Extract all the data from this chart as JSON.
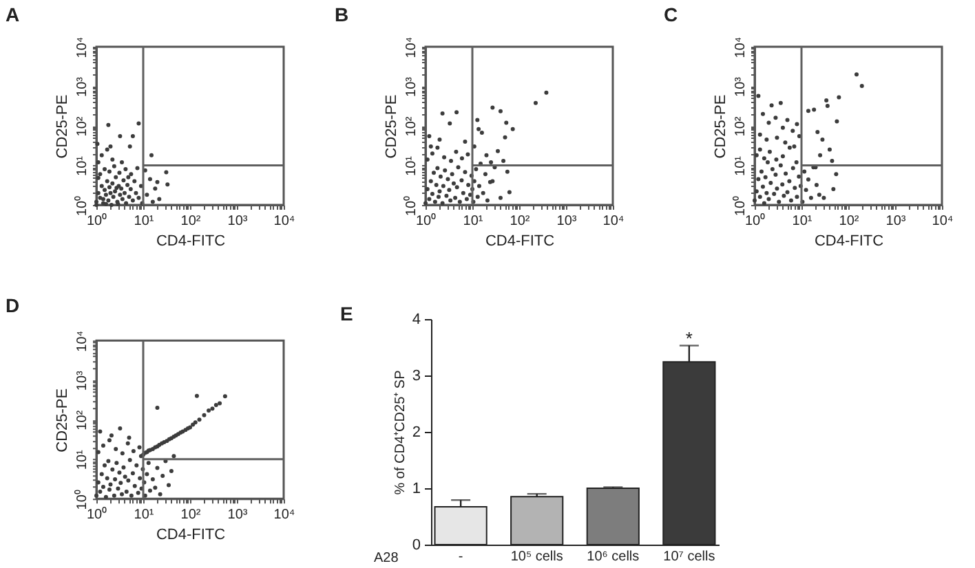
{
  "chart_data": [
    {
      "type": "scatter",
      "title": "A",
      "xlabel": "CD4-FITC",
      "ylabel": "CD25-PE",
      "log": "xy",
      "xlim": [
        1,
        10000
      ],
      "ylim": [
        1,
        10000
      ],
      "xticks": [
        {
          "value": 1,
          "label": "10⁰"
        },
        {
          "value": 2,
          "label": null
        },
        {
          "value": 3,
          "label": null
        },
        {
          "value": 4,
          "label": null
        },
        {
          "value": 5,
          "label": null
        },
        {
          "value": 6,
          "label": null
        },
        {
          "value": 7,
          "label": null
        },
        {
          "value": 8,
          "label": null
        },
        {
          "value": 9,
          "label": null
        },
        {
          "value": 10,
          "label": "10¹"
        },
        {
          "value": 20,
          "label": null
        },
        {
          "value": 30,
          "label": null
        },
        {
          "value": 40,
          "label": null
        },
        {
          "value": 50,
          "label": null
        },
        {
          "value": 60,
          "label": null
        },
        {
          "value": 70,
          "label": null
        },
        {
          "value": 80,
          "label": null
        },
        {
          "value": 90,
          "label": null
        },
        {
          "value": 100,
          "label": "10²"
        },
        {
          "value": 200,
          "label": null
        },
        {
          "value": 300,
          "label": null
        },
        {
          "value": 400,
          "label": null
        },
        {
          "value": 500,
          "label": null
        },
        {
          "value": 600,
          "label": null
        },
        {
          "value": 700,
          "label": null
        },
        {
          "value": 800,
          "label": null
        },
        {
          "value": 900,
          "label": null
        },
        {
          "value": 1000,
          "label": "10³"
        },
        {
          "value": 2000,
          "label": null
        },
        {
          "value": 3000,
          "label": null
        },
        {
          "value": 4000,
          "label": null
        },
        {
          "value": 5000,
          "label": null
        },
        {
          "value": 6000,
          "label": null
        },
        {
          "value": 7000,
          "label": null
        },
        {
          "value": 8000,
          "label": null
        },
        {
          "value": 9000,
          "label": null
        },
        {
          "value": 10000,
          "label": "10⁴"
        }
      ],
      "yticks": [
        {
          "value": 1,
          "label": "10⁰"
        },
        {
          "value": 2,
          "label": null
        },
        {
          "value": 3,
          "label": null
        },
        {
          "value": 4,
          "label": null
        },
        {
          "value": 5,
          "label": null
        },
        {
          "value": 6,
          "label": null
        },
        {
          "value": 7,
          "label": null
        },
        {
          "value": 8,
          "label": null
        },
        {
          "value": 9,
          "label": null
        },
        {
          "value": 10,
          "label": "10¹"
        },
        {
          "value": 20,
          "label": null
        },
        {
          "value": 30,
          "label": null
        },
        {
          "value": 40,
          "label": null
        },
        {
          "value": 50,
          "label": null
        },
        {
          "value": 60,
          "label": null
        },
        {
          "value": 70,
          "label": null
        },
        {
          "value": 80,
          "label": null
        },
        {
          "value": 90,
          "label": null
        },
        {
          "value": 100,
          "label": "10²"
        },
        {
          "value": 200,
          "label": null
        },
        {
          "value": 300,
          "label": null
        },
        {
          "value": 400,
          "label": null
        },
        {
          "value": 500,
          "label": null
        },
        {
          "value": 600,
          "label": null
        },
        {
          "value": 700,
          "label": null
        },
        {
          "value": 800,
          "label": null
        },
        {
          "value": 900,
          "label": null
        },
        {
          "value": 1000,
          "label": "10³"
        },
        {
          "value": 2000,
          "label": null
        },
        {
          "value": 3000,
          "label": null
        },
        {
          "value": 4000,
          "label": null
        },
        {
          "value": 5000,
          "label": null
        },
        {
          "value": 6000,
          "label": null
        },
        {
          "value": 7000,
          "label": null
        },
        {
          "value": 8000,
          "label": null
        },
        {
          "value": 9000,
          "label": null
        },
        {
          "value": 10000,
          "label": "10⁴"
        }
      ],
      "series": [
        {
          "type": "scatter",
          "marker": "circle",
          "color": "#3c3c3c",
          "x": [
            1.0,
            1.1,
            1.2,
            1.3,
            1.4,
            1.5,
            1.6,
            1.7,
            1.8,
            1.9,
            2.0,
            2.1,
            2.2,
            2.3,
            2.5,
            2.6,
            2.8,
            3.0,
            3.2,
            3.4,
            3.6,
            3.8,
            4.0,
            4.3,
            4.6,
            5.0,
            5.4,
            6.0,
            6.5,
            7.0,
            8.0,
            9.0,
            1.2,
            1.5,
            1.1,
            1.9,
            2.4,
            3.1,
            4.2,
            5.5,
            1.3,
            1.7,
            2.2,
            3.5,
            1.05,
            2.0,
            3.2,
            6.0,
            5.2,
            1.8,
            8.0,
            15,
            31,
            33,
            12,
            14,
            18,
            22,
            11,
            16,
            20,
            1.0,
            1.4,
            2.7,
            1.1,
            4.8,
            7.5,
            9.5,
            1.6,
            2.9
          ],
          "values": [
            1.2,
            2.0,
            1.5,
            3.0,
            1.1,
            2.4,
            1.8,
            4.0,
            1.3,
            2.8,
            2.0,
            1.0,
            3.5,
            1.6,
            2.2,
            5.0,
            1.2,
            3.0,
            1.8,
            2.6,
            1.4,
            4.2,
            2.0,
            1.1,
            3.2,
            1.6,
            2.5,
            1.3,
            4.0,
            2.0,
            1.5,
            3.0,
            6.0,
            8.0,
            12,
            7.0,
            9.5,
            6.5,
            8.0,
            6.0,
            18,
            25,
            14,
            12,
            35,
            30,
            55,
            55,
            30,
            105,
            115,
            18,
            6.7,
            3.3,
            1.8,
            4.5,
            2.6,
            1.4,
            7.5,
            1.2,
            3.8,
            1.0,
            1.4,
            2.7,
            4.8,
            5.0,
            8.5,
            1.1,
            1.05,
            1.05
          ]
        },
        {
          "type": "line",
          "color": "#5f5f5f",
          "x": [
            10,
            10
          ],
          "values": [
            1,
            10000
          ]
        },
        {
          "type": "line",
          "color": "#5f5f5f",
          "x": [
            10,
            10000
          ],
          "values": [
            10,
            10
          ]
        }
      ]
    },
    {
      "type": "scatter",
      "title": "B",
      "xlabel": "CD4-FITC",
      "ylabel": "CD25-PE",
      "log": "xy",
      "xlim": [
        1,
        10000
      ],
      "ylim": [
        1,
        10000
      ],
      "xticks": [
        {
          "value": 1,
          "label": "10⁰"
        },
        {
          "value": 2,
          "label": null
        },
        {
          "value": 3,
          "label": null
        },
        {
          "value": 4,
          "label": null
        },
        {
          "value": 5,
          "label": null
        },
        {
          "value": 6,
          "label": null
        },
        {
          "value": 7,
          "label": null
        },
        {
          "value": 8,
          "label": null
        },
        {
          "value": 9,
          "label": null
        },
        {
          "value": 10,
          "label": "10¹"
        },
        {
          "value": 20,
          "label": null
        },
        {
          "value": 30,
          "label": null
        },
        {
          "value": 40,
          "label": null
        },
        {
          "value": 50,
          "label": null
        },
        {
          "value": 60,
          "label": null
        },
        {
          "value": 70,
          "label": null
        },
        {
          "value": 80,
          "label": null
        },
        {
          "value": 90,
          "label": null
        },
        {
          "value": 100,
          "label": "10²"
        },
        {
          "value": 200,
          "label": null
        },
        {
          "value": 300,
          "label": null
        },
        {
          "value": 400,
          "label": null
        },
        {
          "value": 500,
          "label": null
        },
        {
          "value": 600,
          "label": null
        },
        {
          "value": 700,
          "label": null
        },
        {
          "value": 800,
          "label": null
        },
        {
          "value": 900,
          "label": null
        },
        {
          "value": 1000,
          "label": "10³"
        },
        {
          "value": 2000,
          "label": null
        },
        {
          "value": 3000,
          "label": null
        },
        {
          "value": 4000,
          "label": null
        },
        {
          "value": 5000,
          "label": null
        },
        {
          "value": 6000,
          "label": null
        },
        {
          "value": 7000,
          "label": null
        },
        {
          "value": 8000,
          "label": null
        },
        {
          "value": 9000,
          "label": null
        },
        {
          "value": 10000,
          "label": "10⁴"
        }
      ],
      "yticks": [
        {
          "value": 1,
          "label": "10⁰"
        },
        {
          "value": 2,
          "label": null
        },
        {
          "value": 3,
          "label": null
        },
        {
          "value": 4,
          "label": null
        },
        {
          "value": 5,
          "label": null
        },
        {
          "value": 6,
          "label": null
        },
        {
          "value": 7,
          "label": null
        },
        {
          "value": 8,
          "label": null
        },
        {
          "value": 9,
          "label": null
        },
        {
          "value": 10,
          "label": "10¹"
        },
        {
          "value": 20,
          "label": null
        },
        {
          "value": 30,
          "label": null
        },
        {
          "value": 40,
          "label": null
        },
        {
          "value": 50,
          "label": null
        },
        {
          "value": 60,
          "label": null
        },
        {
          "value": 70,
          "label": null
        },
        {
          "value": 80,
          "label": null
        },
        {
          "value": 90,
          "label": null
        },
        {
          "value": 100,
          "label": "10²"
        },
        {
          "value": 200,
          "label": null
        },
        {
          "value": 300,
          "label": null
        },
        {
          "value": 400,
          "label": null
        },
        {
          "value": 500,
          "label": null
        },
        {
          "value": 600,
          "label": null
        },
        {
          "value": 700,
          "label": null
        },
        {
          "value": 800,
          "label": null
        },
        {
          "value": 900,
          "label": null
        },
        {
          "value": 1000,
          "label": "10³"
        },
        {
          "value": 2000,
          "label": null
        },
        {
          "value": 3000,
          "label": null
        },
        {
          "value": 4000,
          "label": null
        },
        {
          "value": 5000,
          "label": null
        },
        {
          "value": 6000,
          "label": null
        },
        {
          "value": 7000,
          "label": null
        },
        {
          "value": 8000,
          "label": null
        },
        {
          "value": 9000,
          "label": null
        },
        {
          "value": 10000,
          "label": "10⁴"
        }
      ],
      "series": [
        {
          "type": "scatter",
          "marker": "circle",
          "color": "#3c3c3c",
          "x": [
            1.0,
            1.1,
            1.2,
            1.3,
            1.4,
            1.5,
            1.6,
            1.7,
            1.8,
            1.9,
            2.0,
            2.1,
            2.3,
            2.4,
            2.6,
            2.8,
            3.0,
            3.2,
            3.4,
            3.7,
            4.0,
            4.3,
            4.7,
            5.0,
            5.4,
            5.9,
            6.4,
            7.0,
            7.6,
            8.2,
            9.0,
            9.6,
            10,
            10.5,
            11,
            12,
            13,
            14,
            15,
            17,
            19,
            21,
            24,
            27,
            30,
            35,
            46,
            56,
            62,
            40,
            1.1,
            1.4,
            1.8,
            2.5,
            3.5,
            4.5,
            6.0,
            8.0,
            1.3,
            2.3,
            3.3,
            4.6,
            12.8,
            13.6,
            16,
            27,
            40,
            53,
            73,
            50,
            225,
            380,
            1.2,
            2.0,
            7.0,
            11,
            20,
            25
          ],
          "values": [
            1.1,
            2.5,
            1.4,
            4.0,
            1.9,
            6.5,
            1.2,
            3.2,
            8.5,
            1.6,
            2.2,
            5.2,
            1.1,
            3.0,
            7.5,
            1.7,
            4.5,
            2.4,
            1.3,
            6.0,
            3.5,
            1.5,
            2.8,
            9.0,
            1.2,
            4.2,
            2.0,
            6.8,
            1.4,
            3.2,
            1.8,
            5.5,
            2.5,
            1.2,
            4.0,
            8.0,
            1.6,
            3.0,
            11,
            2.0,
            6.0,
            1.3,
            3.8,
            4.0,
            9.0,
            23,
            13,
            6.9,
            2.1,
            1.5,
            14,
            20,
            28,
            16,
            13,
            22,
            15,
            19,
            30,
            205,
            115,
            220,
            140,
            83,
            67,
            290,
            235,
            120,
            83,
            51,
            380,
            690,
            55,
            45,
            40,
            30,
            18,
            12
          ]
        },
        {
          "type": "line",
          "color": "#5f5f5f",
          "x": [
            10,
            10
          ],
          "values": [
            1,
            10000
          ]
        },
        {
          "type": "line",
          "color": "#5f5f5f",
          "x": [
            10,
            10000
          ],
          "values": [
            10,
            10
          ]
        }
      ]
    },
    {
      "type": "scatter",
      "title": "C",
      "xlabel": "CD4-FITC",
      "ylabel": "CD25-PE",
      "log": "xy",
      "xlim": [
        1,
        10000
      ],
      "ylim": [
        1,
        10000
      ],
      "xticks": [
        {
          "value": 1,
          "label": "10⁰"
        },
        {
          "value": 2,
          "label": null
        },
        {
          "value": 3,
          "label": null
        },
        {
          "value": 4,
          "label": null
        },
        {
          "value": 5,
          "label": null
        },
        {
          "value": 6,
          "label": null
        },
        {
          "value": 7,
          "label": null
        },
        {
          "value": 8,
          "label": null
        },
        {
          "value": 9,
          "label": null
        },
        {
          "value": 10,
          "label": "10¹"
        },
        {
          "value": 20,
          "label": null
        },
        {
          "value": 30,
          "label": null
        },
        {
          "value": 40,
          "label": null
        },
        {
          "value": 50,
          "label": null
        },
        {
          "value": 60,
          "label": null
        },
        {
          "value": 70,
          "label": null
        },
        {
          "value": 80,
          "label": null
        },
        {
          "value": 90,
          "label": null
        },
        {
          "value": 100,
          "label": "10²"
        },
        {
          "value": 200,
          "label": null
        },
        {
          "value": 300,
          "label": null
        },
        {
          "value": 400,
          "label": null
        },
        {
          "value": 500,
          "label": null
        },
        {
          "value": 600,
          "label": null
        },
        {
          "value": 700,
          "label": null
        },
        {
          "value": 800,
          "label": null
        },
        {
          "value": 900,
          "label": null
        },
        {
          "value": 1000,
          "label": "10³"
        },
        {
          "value": 2000,
          "label": null
        },
        {
          "value": 3000,
          "label": null
        },
        {
          "value": 4000,
          "label": null
        },
        {
          "value": 5000,
          "label": null
        },
        {
          "value": 6000,
          "label": null
        },
        {
          "value": 7000,
          "label": null
        },
        {
          "value": 8000,
          "label": null
        },
        {
          "value": 9000,
          "label": null
        },
        {
          "value": 10000,
          "label": "10⁴"
        }
      ],
      "yticks": [
        {
          "value": 1,
          "label": "10⁰"
        },
        {
          "value": 2,
          "label": null
        },
        {
          "value": 3,
          "label": null
        },
        {
          "value": 4,
          "label": null
        },
        {
          "value": 5,
          "label": null
        },
        {
          "value": 6,
          "label": null
        },
        {
          "value": 7,
          "label": null
        },
        {
          "value": 8,
          "label": null
        },
        {
          "value": 9,
          "label": null
        },
        {
          "value": 10,
          "label": "10¹"
        },
        {
          "value": 20,
          "label": null
        },
        {
          "value": 30,
          "label": null
        },
        {
          "value": 40,
          "label": null
        },
        {
          "value": 50,
          "label": null
        },
        {
          "value": 60,
          "label": null
        },
        {
          "value": 70,
          "label": null
        },
        {
          "value": 80,
          "label": null
        },
        {
          "value": 90,
          "label": null
        },
        {
          "value": 100,
          "label": "10²"
        },
        {
          "value": 200,
          "label": null
        },
        {
          "value": 300,
          "label": null
        },
        {
          "value": 400,
          "label": null
        },
        {
          "value": 500,
          "label": null
        },
        {
          "value": 600,
          "label": null
        },
        {
          "value": 700,
          "label": null
        },
        {
          "value": 800,
          "label": null
        },
        {
          "value": 900,
          "label": null
        },
        {
          "value": 1000,
          "label": "10³"
        },
        {
          "value": 2000,
          "label": null
        },
        {
          "value": 3000,
          "label": null
        },
        {
          "value": 4000,
          "label": null
        },
        {
          "value": 5000,
          "label": null
        },
        {
          "value": 6000,
          "label": null
        },
        {
          "value": 7000,
          "label": null
        },
        {
          "value": 8000,
          "label": null
        },
        {
          "value": 9000,
          "label": null
        },
        {
          "value": 10000,
          "label": "10⁴"
        }
      ],
      "series": [
        {
          "type": "scatter",
          "marker": "circle",
          "color": "#3c3c3c",
          "x": [
            1.0,
            1.1,
            1.2,
            1.3,
            1.4,
            1.5,
            1.6,
            1.7,
            1.8,
            1.9,
            2.0,
            2.2,
            2.4,
            2.6,
            2.8,
            3.0,
            3.3,
            3.6,
            3.9,
            4.2,
            4.6,
            5.0,
            5.5,
            6.0,
            6.6,
            7.2,
            8.0,
            8.8,
            9.6,
            10.5,
            11.5,
            12.5,
            14,
            16,
            18,
            21,
            24,
            1.1,
            1.3,
            1.6,
            2.1,
            2.9,
            4.0,
            5.6,
            7.8,
            1.2,
            2.3,
            3.6,
            1.5,
            2.0,
            2.8,
            4.0,
            5.0,
            6.5,
            8.0,
            1.3,
            1.8,
            3.0,
            4.5,
            7.0,
            9.0,
            14,
            18.5,
            34,
            36,
            57,
            63,
            150,
            195,
            22,
            28,
            40,
            45,
            55,
            48,
            30,
            25,
            20
          ],
          "values": [
            1.3,
            2.2,
            4.5,
            1.6,
            7.0,
            2.9,
            1.1,
            5.0,
            2.0,
            12,
            1.4,
            3.6,
            8.0,
            1.9,
            5.8,
            2.6,
            1.2,
            10,
            3.3,
            1.7,
            6.2,
            2.1,
            4.0,
            1.3,
            8.5,
            2.7,
            1.6,
            5.2,
            3.0,
            1.2,
            7.0,
            2.4,
            4.4,
            1.5,
            9.0,
            3.2,
            1.8,
            18,
            25,
            15,
            22,
            14,
            17,
            28,
            12,
            570,
            330,
            380,
            200,
            120,
            160,
            90,
            140,
            75,
            110,
            60,
            45,
            50,
            38,
            30,
            55,
            240,
            255,
            440,
            320,
            130,
            525,
            2000,
            1020,
            70,
            45,
            25,
            13,
            6.0,
            2.5,
            1.5,
            18,
            9
          ]
        },
        {
          "type": "line",
          "color": "#5f5f5f",
          "x": [
            10,
            10
          ],
          "values": [
            1,
            10000
          ]
        },
        {
          "type": "line",
          "color": "#5f5f5f",
          "x": [
            10,
            10000
          ],
          "values": [
            10,
            10
          ]
        }
      ]
    },
    {
      "type": "scatter",
      "title": "D",
      "xlabel": "CD4-FITC",
      "ylabel": "CD25-PE",
      "log": "xy",
      "xlim": [
        1,
        10000
      ],
      "ylim": [
        1,
        10000
      ],
      "xticks": [
        {
          "value": 1,
          "label": "10⁰"
        },
        {
          "value": 2,
          "label": null
        },
        {
          "value": 3,
          "label": null
        },
        {
          "value": 4,
          "label": null
        },
        {
          "value": 5,
          "label": null
        },
        {
          "value": 6,
          "label": null
        },
        {
          "value": 7,
          "label": null
        },
        {
          "value": 8,
          "label": null
        },
        {
          "value": 9,
          "label": null
        },
        {
          "value": 10,
          "label": "10¹"
        },
        {
          "value": 20,
          "label": null
        },
        {
          "value": 30,
          "label": null
        },
        {
          "value": 40,
          "label": null
        },
        {
          "value": 50,
          "label": null
        },
        {
          "value": 60,
          "label": null
        },
        {
          "value": 70,
          "label": null
        },
        {
          "value": 80,
          "label": null
        },
        {
          "value": 90,
          "label": null
        },
        {
          "value": 100,
          "label": "10²"
        },
        {
          "value": 200,
          "label": null
        },
        {
          "value": 300,
          "label": null
        },
        {
          "value": 400,
          "label": null
        },
        {
          "value": 500,
          "label": null
        },
        {
          "value": 600,
          "label": null
        },
        {
          "value": 700,
          "label": null
        },
        {
          "value": 800,
          "label": null
        },
        {
          "value": 900,
          "label": null
        },
        {
          "value": 1000,
          "label": "10³"
        },
        {
          "value": 2000,
          "label": null
        },
        {
          "value": 3000,
          "label": null
        },
        {
          "value": 4000,
          "label": null
        },
        {
          "value": 5000,
          "label": null
        },
        {
          "value": 6000,
          "label": null
        },
        {
          "value": 7000,
          "label": null
        },
        {
          "value": 8000,
          "label": null
        },
        {
          "value": 9000,
          "label": null
        },
        {
          "value": 10000,
          "label": "10⁴"
        }
      ],
      "yticks": [
        {
          "value": 1,
          "label": "10⁰"
        },
        {
          "value": 2,
          "label": null
        },
        {
          "value": 3,
          "label": null
        },
        {
          "value": 4,
          "label": null
        },
        {
          "value": 5,
          "label": null
        },
        {
          "value": 6,
          "label": null
        },
        {
          "value": 7,
          "label": null
        },
        {
          "value": 8,
          "label": null
        },
        {
          "value": 9,
          "label": null
        },
        {
          "value": 10,
          "label": "10¹"
        },
        {
          "value": 20,
          "label": null
        },
        {
          "value": 30,
          "label": null
        },
        {
          "value": 40,
          "label": null
        },
        {
          "value": 50,
          "label": null
        },
        {
          "value": 60,
          "label": null
        },
        {
          "value": 70,
          "label": null
        },
        {
          "value": 80,
          "label": null
        },
        {
          "value": 90,
          "label": null
        },
        {
          "value": 100,
          "label": "10²"
        },
        {
          "value": 200,
          "label": null
        },
        {
          "value": 300,
          "label": null
        },
        {
          "value": 400,
          "label": null
        },
        {
          "value": 500,
          "label": null
        },
        {
          "value": 600,
          "label": null
        },
        {
          "value": 700,
          "label": null
        },
        {
          "value": 800,
          "label": null
        },
        {
          "value": 900,
          "label": null
        },
        {
          "value": 1000,
          "label": "10³"
        },
        {
          "value": 2000,
          "label": null
        },
        {
          "value": 3000,
          "label": null
        },
        {
          "value": 4000,
          "label": null
        },
        {
          "value": 5000,
          "label": null
        },
        {
          "value": 6000,
          "label": null
        },
        {
          "value": 7000,
          "label": null
        },
        {
          "value": 8000,
          "label": null
        },
        {
          "value": 9000,
          "label": null
        },
        {
          "value": 10000,
          "label": "10⁴"
        }
      ],
      "series": [
        {
          "type": "scatter",
          "marker": "circle",
          "color": "#3c3c3c",
          "x": [
            1.0,
            1.1,
            1.2,
            1.3,
            1.4,
            1.5,
            1.6,
            1.7,
            1.8,
            1.9,
            2.0,
            2.2,
            2.4,
            2.5,
            2.7,
            2.9,
            3.1,
            3.3,
            3.5,
            3.8,
            4.1,
            4.4,
            4.8,
            5.2,
            5.6,
            6.0,
            6.6,
            7.2,
            7.8,
            8.5,
            9.2,
            9.8,
            10.5,
            11,
            12,
            13,
            14,
            16,
            18,
            20,
            23,
            26,
            30,
            35,
            40,
            45,
            1.1,
            1.4,
            1.9,
            2.6,
            3.6,
            4.7,
            6.2,
            8.3,
            1.2,
            2.1,
            3.2,
            5.0,
            20,
            140,
            250,
            430,
            560,
            360,
            9,
            10,
            11,
            12,
            13,
            14,
            16,
            18,
            20,
            22,
            25,
            28,
            32,
            36,
            40,
            45,
            50,
            56,
            63,
            70,
            80,
            90,
            100,
            115,
            130,
            158,
            200,
            300
          ],
          "values": [
            1.2,
            2.6,
            1.5,
            4.2,
            2.0,
            7.0,
            1.1,
            3.3,
            9.0,
            1.7,
            2.3,
            5.5,
            1.2,
            3.1,
            8.0,
            1.8,
            4.6,
            2.5,
            1.3,
            6.2,
            3.6,
            1.5,
            2.9,
            9.5,
            1.2,
            4.4,
            2.1,
            7.0,
            1.4,
            3.3,
            1.8,
            5.6,
            2.6,
            1.2,
            4.2,
            8.0,
            1.6,
            3.1,
            1.9,
            6.0,
            1.3,
            3.8,
            9.0,
            2.2,
            5.0,
            12,
            15,
            22,
            30,
            18,
            14,
            25,
            16,
            20,
            50,
            40,
            60,
            35,
            200,
            400,
            170,
            260,
            390,
            235,
            12,
            13,
            14.5,
            15,
            16.5,
            17,
            18,
            20,
            21,
            23,
            25,
            27,
            29,
            32,
            34,
            37,
            40,
            43,
            47,
            50,
            55,
            60,
            64,
            75,
            85,
            100,
            130,
            190
          ]
        },
        {
          "type": "line",
          "color": "#5f5f5f",
          "x": [
            10,
            10
          ],
          "values": [
            1,
            10000
          ]
        },
        {
          "type": "line",
          "color": "#5f5f5f",
          "x": [
            10,
            10000
          ],
          "values": [
            10,
            10
          ]
        }
      ]
    },
    {
      "type": "bar",
      "title": "E",
      "xlabel": "A28",
      "ylabel": "% of CD4⁺CD25⁺ SP",
      "categories": [
        "-",
        "10⁵ cells",
        "10⁶ cells",
        "10⁷ cells"
      ],
      "values": [
        0.67,
        0.85,
        1.0,
        3.24
      ],
      "errors": [
        [
          0.67,
          0.79
        ],
        [
          0.85,
          0.9
        ],
        [
          1.0,
          1.02
        ],
        [
          3.24,
          3.53
        ]
      ],
      "colors": [
        "#e6e6e6",
        "#b3b3b3",
        "#7d7d7d",
        "#3b3b3b"
      ],
      "ylim": [
        0,
        4
      ],
      "yticks": [
        0,
        1,
        2,
        3,
        4
      ],
      "annotations": [
        "*"
      ]
    }
  ]
}
